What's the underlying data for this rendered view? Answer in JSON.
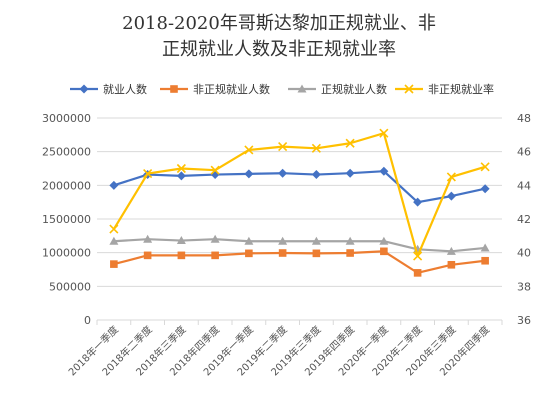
{
  "chart_data": {
    "type": "line",
    "title_lines": [
      "2018-2020年哥斯达黎加正规就业、非",
      "正规就业人数及非正规就业率"
    ],
    "categories": [
      "2018年一季度",
      "2018年二季度",
      "2018年三季度",
      "2018年四季度",
      "2019年一季度",
      "2019年二季度",
      "2019年三季度",
      "2019年四季度",
      "2020年一季度",
      "2020年二季度",
      "2020年三季度",
      "2020年四季度"
    ],
    "y_left": {
      "min": 0,
      "max": 3000000,
      "step": 500000,
      "tick_labels": [
        "0",
        "500000",
        "1000000",
        "1500000",
        "2000000",
        "2500000",
        "3000000"
      ]
    },
    "y_right": {
      "min": 36,
      "max": 48,
      "step": 2,
      "tick_labels": [
        "36",
        "38",
        "40",
        "42",
        "44",
        "46",
        "48"
      ]
    },
    "legend_position": "top",
    "gridlines": true,
    "series": [
      {
        "name": "就业人数",
        "axis": "left",
        "color": "#4472C4",
        "marker": "diamond",
        "values": [
          2000000,
          2160000,
          2140000,
          2160000,
          2170000,
          2180000,
          2160000,
          2180000,
          2210000,
          1750000,
          1840000,
          1950000
        ]
      },
      {
        "name": "非正规就业人数",
        "axis": "left",
        "color": "#ED7D31",
        "marker": "square",
        "values": [
          830000,
          960000,
          960000,
          960000,
          990000,
          995000,
          990000,
          995000,
          1020000,
          700000,
          820000,
          880000
        ]
      },
      {
        "name": "正规就业人数",
        "axis": "left",
        "color": "#A5A5A5",
        "marker": "triangle",
        "values": [
          1170000,
          1200000,
          1180000,
          1200000,
          1170000,
          1170000,
          1170000,
          1170000,
          1170000,
          1050000,
          1020000,
          1070000
        ]
      },
      {
        "name": "非正规就业率",
        "axis": "right",
        "color": "#FFC000",
        "marker": "x",
        "values": [
          41.4,
          44.7,
          45.0,
          44.9,
          46.1,
          46.3,
          46.2,
          46.5,
          47.1,
          39.8,
          44.5,
          45.1
        ]
      }
    ]
  }
}
